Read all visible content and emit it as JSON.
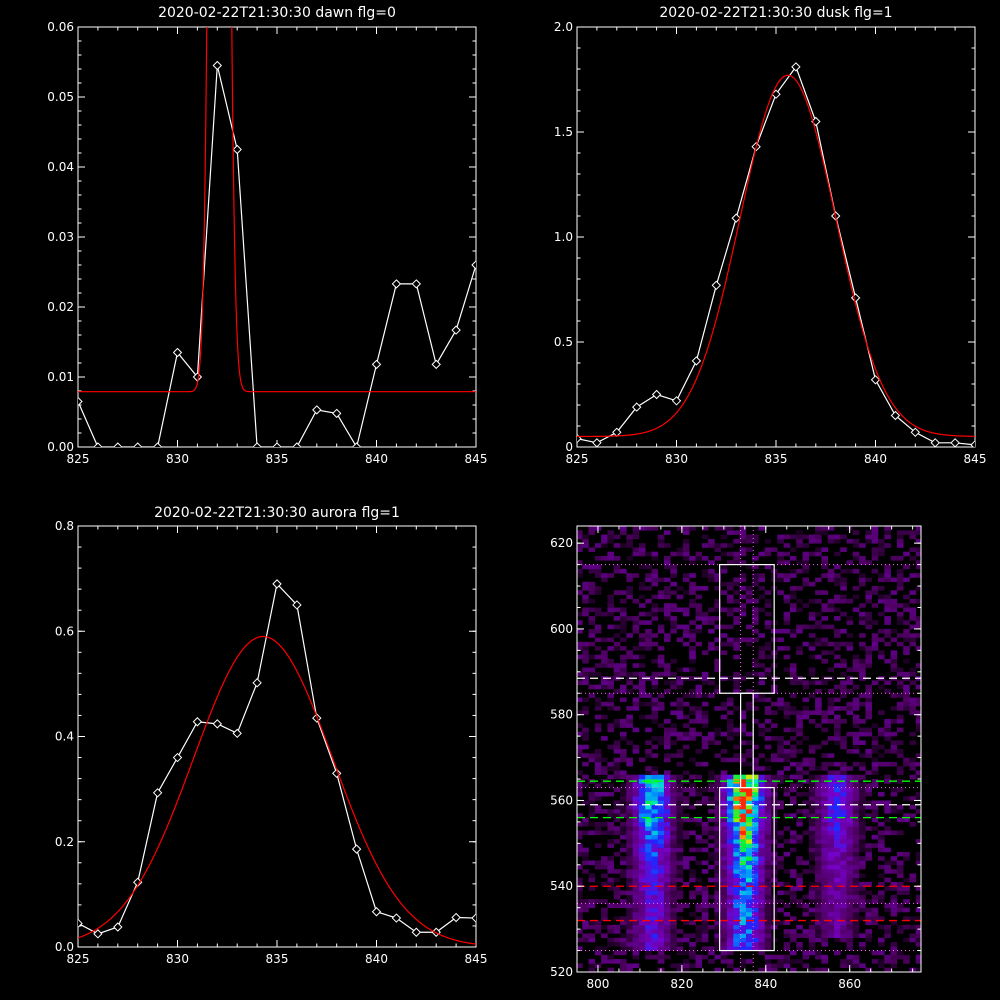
{
  "chart_data": [
    {
      "type": "line",
      "title": "2020-02-22T21:30:30 dawn flg=0",
      "xlabel": "",
      "ylabel": "",
      "xlim": [
        825,
        845
      ],
      "ylim": [
        0,
        0.06
      ],
      "xticks": [
        "825",
        "830",
        "835",
        "840",
        "845"
      ],
      "yticks": [
        "0.00",
        "0.01",
        "0.02",
        "0.03",
        "0.04",
        "0.05",
        "0.06"
      ],
      "series": [
        {
          "color": "#ffffff",
          "marker": "diamond",
          "x": [
            825,
            826,
            827,
            828,
            829,
            830,
            831,
            832,
            833,
            834,
            835,
            836,
            837,
            838,
            839,
            840,
            841,
            842,
            843,
            844,
            845
          ],
          "y": [
            0.0065,
            0.0,
            0.0,
            0.0,
            0.0,
            0.0135,
            0.01,
            0.0545,
            0.0425,
            0.0,
            0.0,
            0.0,
            0.0053,
            0.0048,
            0.0,
            0.0118,
            0.0233,
            0.0233,
            0.0118,
            0.0167,
            0.026
          ]
        },
        {
          "color": "#ff0000",
          "model": "gaussian",
          "params": {
            "amplitude": 0.32,
            "center": 832.1,
            "sigma": 0.33,
            "offset": 0.0079
          }
        }
      ]
    },
    {
      "type": "line",
      "title": "2020-02-22T21:30:30 dusk flg=1",
      "xlabel": "",
      "ylabel": "",
      "xlim": [
        825,
        845
      ],
      "ylim": [
        0,
        2.0
      ],
      "xticks": [
        "825",
        "830",
        "835",
        "840",
        "845"
      ],
      "yticks": [
        "0",
        "0.5",
        "1.0",
        "1.5",
        "2.0"
      ],
      "series": [
        {
          "color": "#ffffff",
          "marker": "diamond",
          "x": [
            825,
            826,
            827,
            828,
            829,
            830,
            831,
            832,
            833,
            834,
            835,
            836,
            837,
            838,
            839,
            840,
            841,
            842,
            843,
            844,
            845
          ],
          "y": [
            0.04,
            0.02,
            0.07,
            0.19,
            0.25,
            0.22,
            0.41,
            0.77,
            1.09,
            1.43,
            1.68,
            1.81,
            1.55,
            1.1,
            0.71,
            0.32,
            0.15,
            0.07,
            0.02,
            0.02,
            0.01
          ]
        },
        {
          "color": "#ff0000",
          "model": "gaussian",
          "params": {
            "amplitude": 1.72,
            "center": 835.6,
            "sigma": 2.4,
            "offset": 0.05
          }
        }
      ]
    },
    {
      "type": "line",
      "title": "2020-02-22T21:30:30 aurora flg=1",
      "xlabel": "",
      "ylabel": "",
      "xlim": [
        825,
        845
      ],
      "ylim": [
        0,
        0.8
      ],
      "xticks": [
        "825",
        "830",
        "835",
        "840",
        "845"
      ],
      "yticks": [
        "0.0",
        "0.2",
        "0.4",
        "0.6",
        "0.8"
      ],
      "series": [
        {
          "color": "#ffffff",
          "marker": "diamond",
          "x": [
            825,
            826,
            827,
            828,
            829,
            830,
            831,
            832,
            833,
            834,
            835,
            836,
            837,
            838,
            839,
            840,
            841,
            842,
            843,
            844,
            845
          ],
          "y": [
            0.045,
            0.025,
            0.038,
            0.123,
            0.293,
            0.36,
            0.428,
            0.424,
            0.406,
            0.502,
            0.69,
            0.65,
            0.435,
            0.33,
            0.186,
            0.067,
            0.055,
            0.028,
            0.028,
            0.056,
            0.055
          ]
        },
        {
          "color": "#ff0000",
          "model": "gaussian",
          "params": {
            "amplitude": 0.59,
            "center": 834.3,
            "sigma": 3.5,
            "offset": 0.0
          }
        }
      ]
    },
    {
      "type": "heatmap",
      "title": "",
      "xlabel": "",
      "ylabel": "",
      "xlim": [
        795,
        877
      ],
      "ylim": [
        520,
        624
      ],
      "xticks": [
        "800",
        "820",
        "840",
        "860"
      ],
      "yticks": [
        "520",
        "540",
        "560",
        "580",
        "600",
        "620"
      ],
      "colormap": "rainbow on black",
      "emission_columns": [
        {
          "x_center": 813,
          "y_range": [
            525,
            566
          ],
          "brightest_y": 562,
          "peak": 0.7
        },
        {
          "x_center": 835,
          "y_range": [
            525,
            566
          ],
          "brightest_y": 562,
          "peak": 1.0
        },
        {
          "x_center": 857,
          "y_range": [
            528,
            566
          ],
          "brightest_y": 561,
          "peak": 0.45
        }
      ],
      "dotted_vertical_x": [
        834,
        837
      ],
      "dotted_horizontal_y": [
        615,
        585,
        563,
        536,
        525
      ],
      "dashed_lines": [
        {
          "y": 588.5,
          "color": "#ffffff"
        },
        {
          "y": 564.5,
          "color": "#00ff00"
        },
        {
          "y": 559,
          "color": "#ffffff"
        },
        {
          "y": 556,
          "color": "#00ff00"
        },
        {
          "y": 540,
          "color": "#ff0000"
        },
        {
          "y": 532,
          "color": "#ff0000"
        }
      ],
      "boxes": [
        {
          "x": [
            829,
            842
          ],
          "y": [
            585,
            615
          ]
        },
        {
          "x": [
            829,
            842
          ],
          "y": [
            525,
            563
          ]
        },
        {
          "x": [
            834,
            837
          ],
          "y": [
            563,
            585
          ]
        }
      ]
    }
  ]
}
